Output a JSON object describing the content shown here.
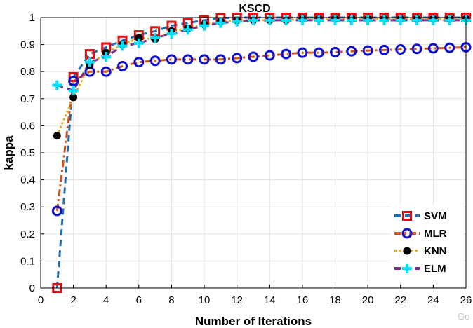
{
  "chart_data": {
    "type": "line",
    "title": "KSCD",
    "xlabel": "Number of Iterations",
    "ylabel": "kappa",
    "xlim": [
      0,
      26
    ],
    "ylim": [
      0,
      1
    ],
    "xticks": [
      0,
      2,
      4,
      6,
      8,
      10,
      12,
      14,
      16,
      18,
      20,
      22,
      24,
      26
    ],
    "yticks": [
      0,
      0.1,
      0.2,
      0.3,
      0.4,
      0.5,
      0.6,
      0.7,
      0.8,
      0.9,
      1
    ],
    "ytick_labels": [
      "0",
      "0.1",
      "0.2",
      "0.3",
      "0.4",
      "0.5",
      "0.6",
      "0.7",
      "0.8",
      "0.9",
      "1"
    ],
    "grid": true,
    "legend_position": "bottom-right",
    "x": [
      1,
      2,
      3,
      4,
      5,
      6,
      7,
      8,
      9,
      10,
      11,
      12,
      13,
      14,
      15,
      16,
      17,
      18,
      19,
      20,
      21,
      22,
      23,
      24,
      25,
      26
    ],
    "series": [
      {
        "name": "SVM",
        "color": "#1f6fb5",
        "marker_color": "#e01010",
        "marker": "square",
        "linestyle": "dashed",
        "values": [
          0.0,
          0.78,
          0.865,
          0.89,
          0.915,
          0.935,
          0.95,
          0.97,
          0.98,
          0.99,
          0.998,
          1.0,
          1.0,
          1.0,
          1.0,
          1.0,
          1.0,
          1.0,
          1.0,
          1.0,
          1.0,
          1.0,
          1.0,
          1.0,
          1.0,
          1.0
        ]
      },
      {
        "name": "MLR",
        "color": "#d4531f",
        "marker_color": "#1010d0",
        "marker": "circle",
        "linestyle": "dashdot",
        "values": [
          0.285,
          0.765,
          0.8,
          0.8,
          0.82,
          0.835,
          0.84,
          0.845,
          0.845,
          0.845,
          0.845,
          0.85,
          0.855,
          0.86,
          0.865,
          0.87,
          0.87,
          0.872,
          0.875,
          0.878,
          0.88,
          0.882,
          0.884,
          0.886,
          0.888,
          0.89
        ]
      },
      {
        "name": "KNN",
        "color": "#e8b020",
        "marker_color": "#000000",
        "marker": "circle-filled",
        "linestyle": "dotted",
        "values": [
          0.563,
          0.705,
          0.825,
          0.87,
          0.9,
          0.925,
          0.92,
          0.95,
          0.96,
          0.975,
          0.985,
          0.99,
          0.99,
          0.99,
          0.99,
          0.995,
          0.995,
          0.995,
          0.995,
          0.995,
          0.995,
          0.995,
          0.995,
          0.995,
          0.995,
          0.995
        ]
      },
      {
        "name": "ELM",
        "color": "#7b2f8c",
        "marker_color": "#00e0ff",
        "marker": "plus",
        "linestyle": "dashed",
        "values": [
          0.75,
          0.73,
          0.835,
          0.855,
          0.895,
          0.905,
          0.925,
          0.94,
          0.955,
          0.97,
          0.98,
          0.985,
          0.99,
          0.99,
          0.99,
          0.99,
          0.99,
          0.99,
          0.99,
          0.99,
          0.99,
          0.99,
          0.99,
          0.99,
          0.99,
          0.99
        ]
      }
    ]
  },
  "watermark": "Go"
}
